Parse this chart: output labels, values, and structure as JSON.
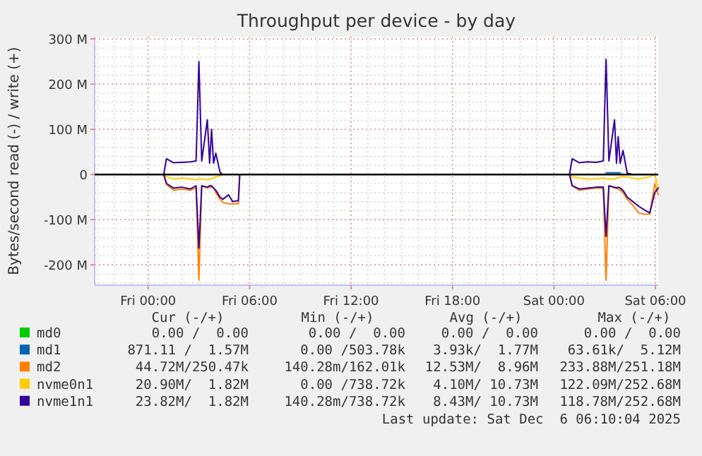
{
  "chart_data": {
    "type": "line",
    "title": "Throughput per device - by day",
    "ylabel": "Bytes/second read (-) / write (+)",
    "x": [
      "2025-12-05T00:55",
      "2025-12-05T01:05",
      "2025-12-05T01:30",
      "2025-12-05T02:00",
      "2025-12-05T02:30",
      "2025-12-05T02:50",
      "2025-12-05T03:00",
      "2025-12-05T03:10",
      "2025-12-05T03:30",
      "2025-12-05T03:38",
      "2025-12-05T03:45",
      "2025-12-05T03:52",
      "2025-12-05T04:00",
      "2025-12-05T04:15",
      "2025-12-05T04:25",
      "2025-12-05T04:45",
      "2025-12-05T05:00",
      "2025-12-05T05:20",
      "2025-12-05T05:25",
      "2025-12-05T12:00",
      "2025-12-05T18:00",
      "2025-12-06T00:30",
      "2025-12-06T00:55",
      "2025-12-06T01:05",
      "2025-12-06T01:30",
      "2025-12-06T02:00",
      "2025-12-06T02:30",
      "2025-12-06T02:55",
      "2025-12-06T03:05",
      "2025-12-06T03:15",
      "2025-12-06T03:35",
      "2025-12-06T03:42",
      "2025-12-06T03:48",
      "2025-12-06T03:55",
      "2025-12-06T04:05",
      "2025-12-06T04:20",
      "2025-12-06T04:40",
      "2025-12-06T05:00",
      "2025-12-06T05:20",
      "2025-12-06T05:40",
      "2025-12-06T05:58",
      "2025-12-06T06:10"
    ],
    "series": [
      {
        "name": "md0",
        "color": "#00cc00",
        "values": [
          null,
          null,
          null,
          null,
          null,
          null,
          null,
          null,
          null,
          null,
          null,
          null,
          null,
          null,
          null,
          null,
          null,
          null,
          null,
          null,
          null,
          null,
          null,
          null,
          null,
          null,
          null,
          null,
          null,
          null,
          null,
          null,
          null,
          null,
          null,
          null,
          null,
          null,
          null,
          null,
          null,
          null
        ]
      },
      {
        "name": "md1",
        "color": "#0066b3",
        "values": [
          null,
          null,
          null,
          null,
          null,
          null,
          null,
          null,
          null,
          null,
          null,
          null,
          null,
          null,
          null,
          null,
          null,
          null,
          null,
          null,
          null,
          null,
          null,
          null,
          null,
          null,
          null,
          null,
          4,
          4,
          4,
          4,
          4,
          4,
          null,
          null,
          null,
          null,
          null,
          null,
          null,
          null
        ]
      },
      {
        "name": "md2",
        "color": "#ff8000",
        "values": [
          0,
          -22,
          -35,
          -32,
          -35,
          -30,
          -234,
          -25,
          -30,
          -28,
          -28,
          -30,
          -40,
          -55,
          -62,
          -65,
          -65,
          -65,
          0,
          null,
          null,
          null,
          0,
          -25,
          -35,
          -32,
          -30,
          -30,
          -234,
          -25,
          -30,
          -30,
          -32,
          -35,
          -40,
          -55,
          -68,
          -85,
          -88,
          -88,
          -20,
          -45
        ]
      },
      {
        "name": "nvme0n1",
        "color": "#ffcc00",
        "values": [
          0,
          -5,
          -10,
          -8,
          -10,
          -12,
          -10,
          -10,
          -12,
          -10,
          -10,
          -8,
          -5,
          -3,
          0,
          null,
          null,
          null,
          null,
          null,
          null,
          null,
          0,
          -5,
          -8,
          -10,
          -10,
          -8,
          -10,
          -10,
          -10,
          -8,
          -8,
          -5,
          -5,
          -5,
          -8,
          -10,
          -8,
          -5,
          0,
          -30
        ]
      },
      {
        "name": "nvme1n1",
        "color": "#330099",
        "values": [
          0,
          35,
          26,
          27,
          28,
          30,
          250,
          30,
          121,
          25,
          100,
          25,
          47,
          5,
          0,
          null,
          null,
          null,
          null,
          null,
          null,
          null,
          0,
          35,
          26,
          28,
          27,
          30,
          255,
          30,
          121,
          25,
          84,
          25,
          53,
          3,
          0,
          null,
          null,
          null,
          null,
          null
        ]
      },
      {
        "color": "#330099",
        "values": [
          0,
          -20,
          -30,
          -28,
          -32,
          -25,
          -163,
          -25,
          -28,
          -25,
          -25,
          -30,
          -35,
          -50,
          -55,
          -45,
          -60,
          -58,
          0,
          null,
          null,
          null,
          0,
          -25,
          -32,
          -30,
          -28,
          -28,
          -137,
          -25,
          -28,
          -30,
          -28,
          -30,
          -35,
          -50,
          -60,
          -70,
          -78,
          -85,
          -40,
          -30
        ]
      }
    ],
    "xlim": [
      "2025-12-04T20:50",
      "2025-12-06T06:10"
    ],
    "xticks": [
      {
        "value": "2025-12-05T00:00",
        "label": "Fri 00:00"
      },
      {
        "value": "2025-12-05T06:00",
        "label": "Fri 06:00"
      },
      {
        "value": "2025-12-05T12:00",
        "label": "Fri 12:00"
      },
      {
        "value": "2025-12-05T18:00",
        "label": "Fri 18:00"
      },
      {
        "value": "2025-12-06T00:00",
        "label": "Sat 00:00"
      },
      {
        "value": "2025-12-06T06:00",
        "label": "Sat 06:00"
      }
    ],
    "ylim": [
      -245,
      305
    ],
    "yticks": [
      {
        "value": -200,
        "label": "-200 M"
      },
      {
        "value": -100,
        "label": "-100 M"
      },
      0,
      {
        "value": 100,
        "label": "100 M"
      },
      {
        "value": 200,
        "label": "200 M"
      },
      {
        "value": 300,
        "label": "300 M"
      }
    ],
    "grid": true,
    "legend": "bottom",
    "marker": "none",
    "line_style": "solid",
    "ref_lines": [
      {
        "axis": "y",
        "value": 0,
        "color": "#000000"
      }
    ],
    "annotations": [
      "Cur (-/+)",
      "Min (-/+)",
      "Avg (-/+)",
      "Max (-/+)",
      "0.00 /  0.00",
      "0.00 /  0.00",
      "0.00 /  0.00",
      "0.00 /  0.00",
      "871.11 /  1.57M",
      "0.00 /503.78k",
      "3.93k/  1.77M",
      "63.61k/  5.12M",
      "44.72M/250.47k",
      "140.28m/162.01k",
      "12.53M/  8.96M",
      "233.88M/251.18M",
      "20.90M/  1.82M",
      "0.00 /738.72k",
      "4.10M/ 10.73M",
      "122.09M/252.68M",
      "23.82M/  1.82M",
      "140.28m/738.72k",
      "8.43M/ 10.73M",
      "118.78M/252.68M",
      "Last update: Sat Dec  6 06:10:04 2025"
    ]
  }
}
